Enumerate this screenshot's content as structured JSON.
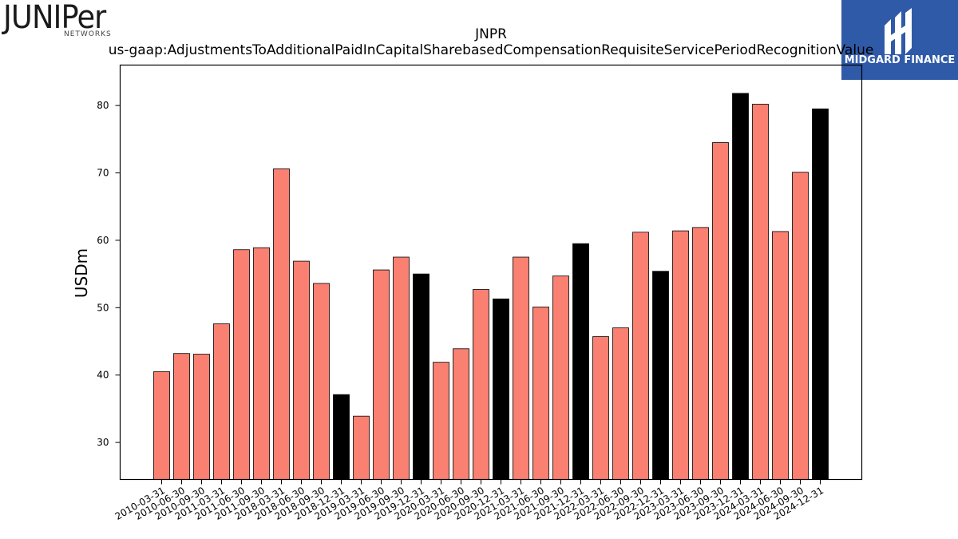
{
  "header": {
    "left_logo": {
      "wordmark": "JUNIPer",
      "subtitle": "NETWORKS"
    },
    "right_logo": {
      "name": "MIDGARD FINANCE",
      "bg_color": "#2f5aa8"
    }
  },
  "chart_data": {
    "type": "bar",
    "title": "JNPR",
    "subtitle": "us-gaap:AdjustmentsToAdditionalPaidInCapitalSharebasedCompensationRequisiteServicePeriodRecognitionValue",
    "xlabel": "",
    "ylabel": "USDm",
    "ylim": [
      24.5,
      86
    ],
    "yticks": [
      30,
      40,
      50,
      60,
      70,
      80
    ],
    "grid": false,
    "colors": {
      "quarter": "#fa8072",
      "year_end": "#000000",
      "edge": "#000000"
    },
    "categories": [
      "2010-03-31",
      "2010-06-30",
      "2010-09-30",
      "2011-03-31",
      "2011-06-30",
      "2011-09-30",
      "2018-03-31",
      "2018-06-30",
      "2018-09-30",
      "2018-12-31",
      "2019-03-31",
      "2019-06-30",
      "2019-09-30",
      "2019-12-31",
      "2020-03-31",
      "2020-06-30",
      "2020-09-30",
      "2020-12-31",
      "2021-03-31",
      "2021-06-30",
      "2021-09-30",
      "2021-12-31",
      "2022-03-31",
      "2022-06-30",
      "2022-09-30",
      "2022-12-31",
      "2023-03-31",
      "2023-06-30",
      "2023-09-30",
      "2023-12-31",
      "2024-03-31",
      "2024-06-30",
      "2024-09-30",
      "2024-12-31"
    ],
    "values": [
      40.5,
      43.2,
      43.1,
      47.6,
      58.6,
      58.9,
      70.6,
      56.9,
      53.6,
      37.1,
      33.9,
      55.6,
      57.5,
      55.0,
      41.9,
      43.9,
      52.7,
      51.3,
      57.5,
      50.1,
      54.7,
      59.5,
      45.7,
      47.0,
      61.2,
      55.4,
      61.4,
      61.9,
      74.5,
      81.8,
      80.2,
      61.3,
      70.1,
      79.5
    ]
  }
}
